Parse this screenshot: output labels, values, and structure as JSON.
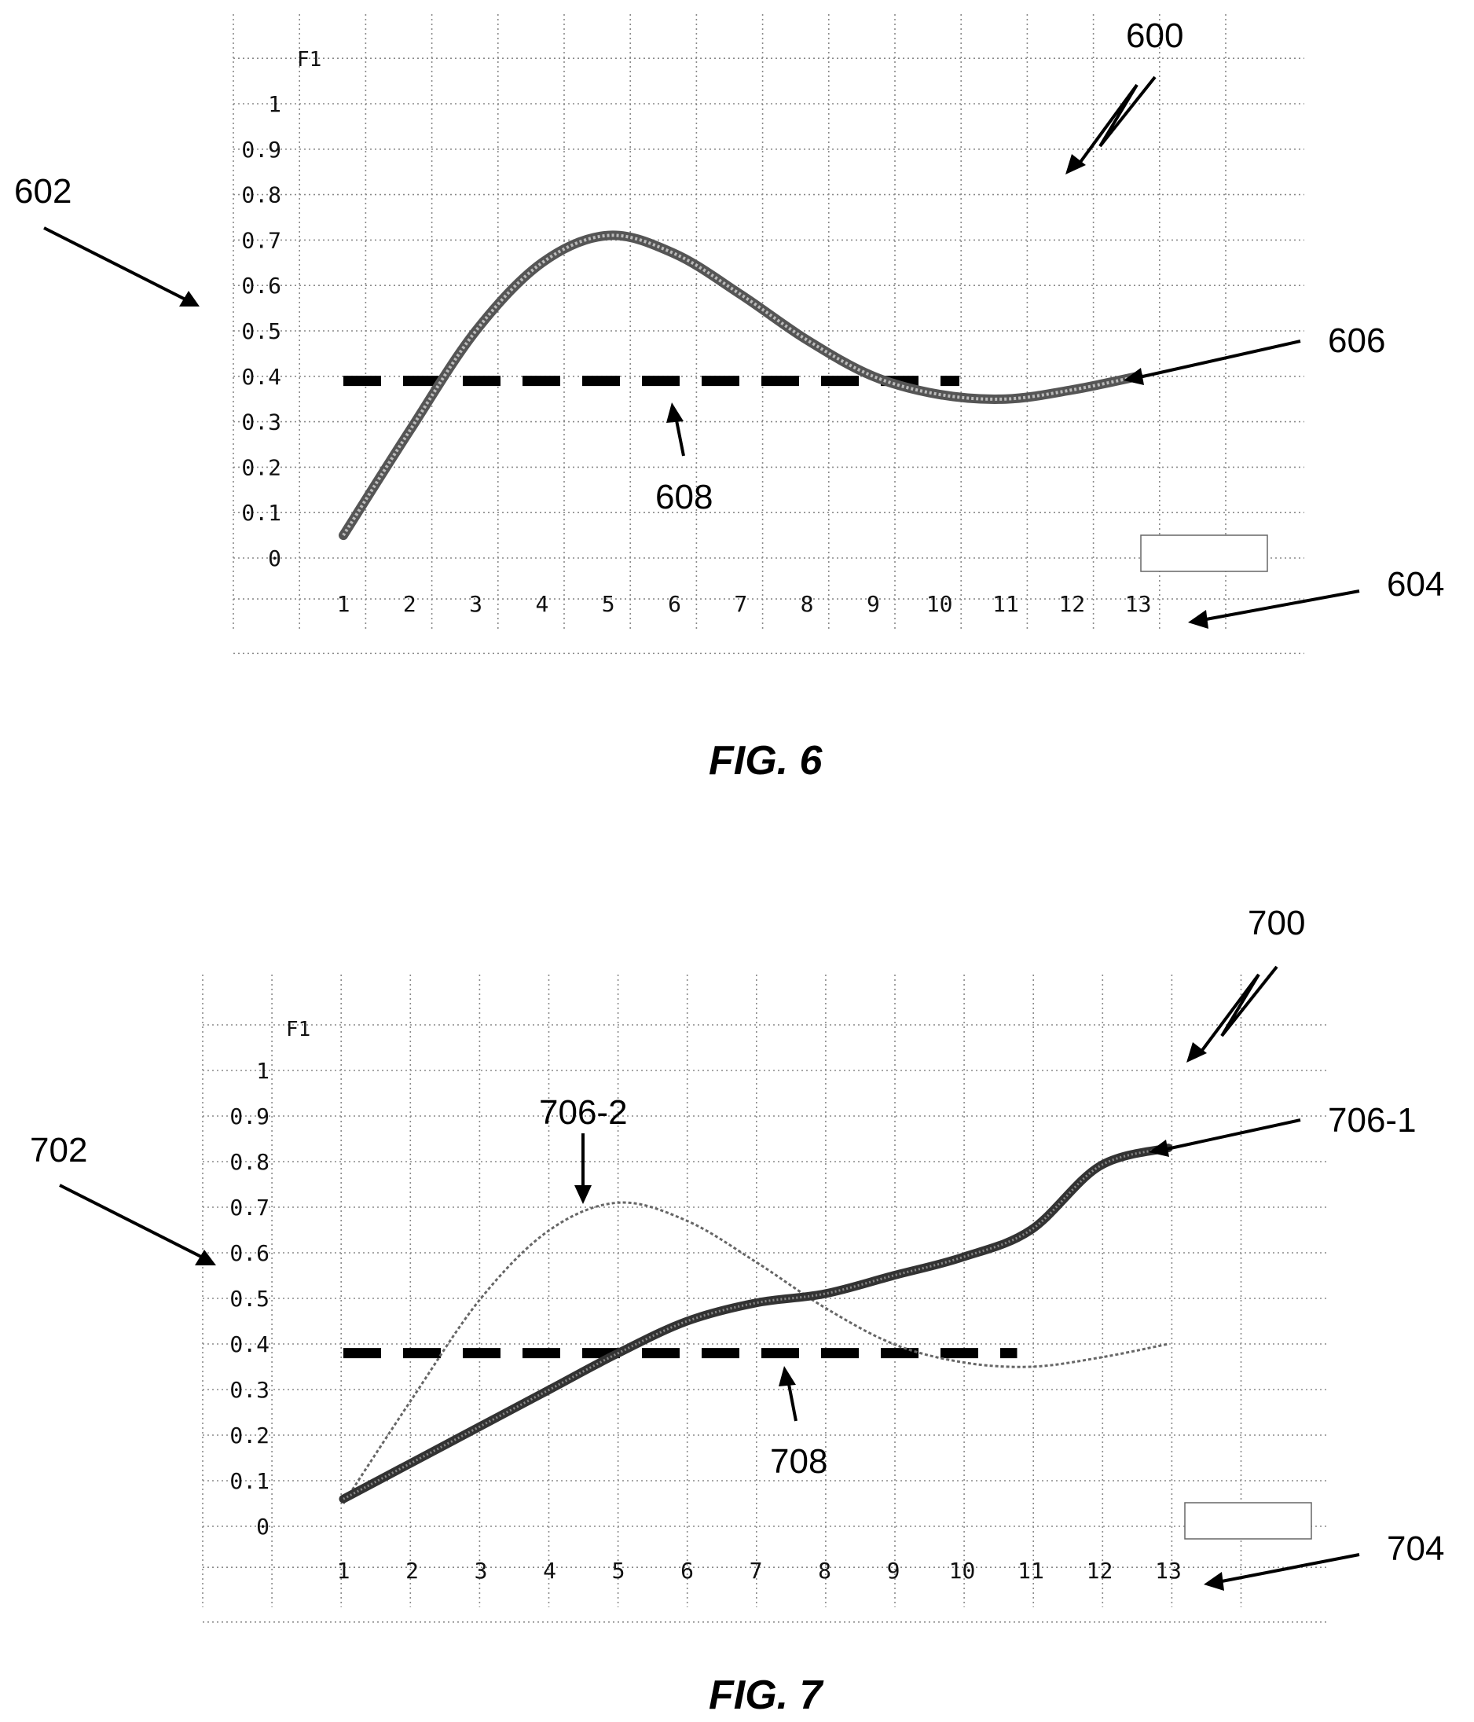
{
  "figures": [
    {
      "caption": "FIG. 6",
      "figure_ref": "600",
      "y_axis_ref": "602",
      "x_axis_ref": "604",
      "annotations": [
        {
          "text": "606",
          "target": "series-0"
        },
        {
          "text": "608",
          "target": "threshold"
        }
      ]
    },
    {
      "caption": "FIG. 7",
      "figure_ref": "700",
      "y_axis_ref": "702",
      "x_axis_ref": "704",
      "annotations": [
        {
          "text": "706-1",
          "target": "series-1"
        },
        {
          "text": "706-2",
          "target": "series-0"
        },
        {
          "text": "708",
          "target": "threshold"
        }
      ]
    }
  ],
  "chart_data": [
    {
      "type": "line",
      "ylabel": "F1",
      "xlabel": "",
      "x": [
        1,
        2,
        3,
        4,
        5,
        6,
        7,
        8,
        9,
        10,
        11,
        12,
        13
      ],
      "x_ticks": [
        "1",
        "2",
        "3",
        "4",
        "5",
        "6",
        "7",
        "8",
        "9",
        "10",
        "11",
        "12",
        "13"
      ],
      "y_ticks": [
        "0",
        "0.1",
        "0.2",
        "0.3",
        "0.4",
        "0.5",
        "0.6",
        "0.7",
        "0.8",
        "0.9",
        "1"
      ],
      "ylim": [
        0,
        1
      ],
      "series": [
        {
          "name": "",
          "values": [
            0.05,
            0.28,
            0.5,
            0.65,
            0.71,
            0.67,
            0.58,
            0.48,
            0.4,
            0.36,
            0.35,
            0.37,
            0.4
          ],
          "style": "thick-hatched",
          "color": "#555555"
        }
      ],
      "threshold": {
        "value": 0.39,
        "x_from": 1,
        "x_to": 10.3
      },
      "grid": true,
      "legend": "bottom-right (empty box)"
    },
    {
      "type": "line",
      "ylabel": "F1",
      "xlabel": "",
      "x": [
        1,
        2,
        3,
        4,
        5,
        6,
        7,
        8,
        9,
        10,
        11,
        12,
        13
      ],
      "x_ticks": [
        "1",
        "2",
        "3",
        "4",
        "5",
        "6",
        "7",
        "8",
        "9",
        "10",
        "11",
        "12",
        "13"
      ],
      "y_ticks": [
        "0",
        "0.1",
        "0.2",
        "0.3",
        "0.4",
        "0.5",
        "0.6",
        "0.7",
        "0.8",
        "0.9",
        "1"
      ],
      "ylim": [
        0,
        1
      ],
      "series": [
        {
          "name": "",
          "values": [
            0.05,
            0.28,
            0.5,
            0.65,
            0.71,
            0.67,
            0.58,
            0.48,
            0.4,
            0.36,
            0.35,
            0.37,
            0.4
          ],
          "style": "thin-dotted",
          "color": "#666666"
        },
        {
          "name": "",
          "values": [
            0.06,
            0.14,
            0.22,
            0.3,
            0.38,
            0.45,
            0.49,
            0.51,
            0.55,
            0.59,
            0.65,
            0.79,
            0.83
          ],
          "style": "thick-dark",
          "color": "#333333"
        }
      ],
      "threshold": {
        "value": 0.38,
        "x_from": 1,
        "x_to": 10.8
      },
      "grid": true,
      "legend": "bottom-right (empty box)"
    }
  ]
}
